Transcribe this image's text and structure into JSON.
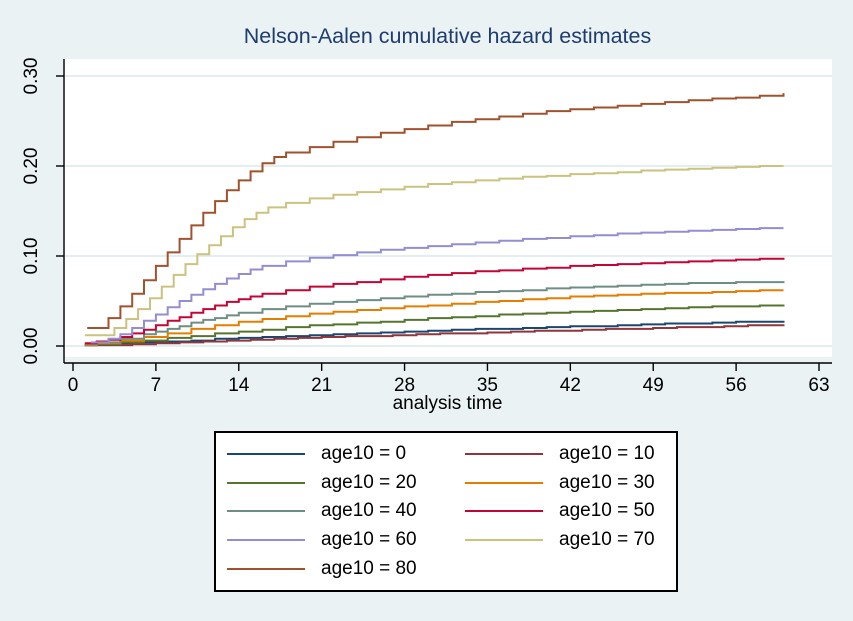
{
  "figure": {
    "background_color": "#eaf2f3",
    "plot_background_color": "#ffffff",
    "gridline_color": "#e3eef1",
    "axis_color": "#000000",
    "title_color": "#1e3c6e"
  },
  "chart_data": {
    "type": "line",
    "subtype": "step",
    "title": "Nelson-Aalen cumulative hazard estimates",
    "xlabel": "analysis time",
    "ylabel": "",
    "xlim": [
      0,
      63
    ],
    "ylim": [
      0,
      0.3
    ],
    "xticks": [
      0,
      7,
      14,
      21,
      28,
      35,
      42,
      49,
      56,
      63
    ],
    "yticks": [
      0.0,
      0.1,
      0.2,
      0.3
    ],
    "ytick_labels": [
      "0.00",
      "0.10",
      "0.20",
      "0.30"
    ],
    "grid": true,
    "legend_position": "below-center",
    "series": [
      {
        "name": "age10 = 0",
        "color": "#1a476f",
        "points": [
          [
            1,
            0.001
          ],
          [
            2,
            0.002
          ],
          [
            4,
            0.003
          ],
          [
            6,
            0.004
          ],
          [
            8,
            0.005
          ],
          [
            10,
            0.006
          ],
          [
            12,
            0.008
          ],
          [
            14,
            0.009
          ],
          [
            16,
            0.01
          ],
          [
            18,
            0.011
          ],
          [
            20,
            0.012
          ],
          [
            22,
            0.013
          ],
          [
            24,
            0.014
          ],
          [
            26,
            0.015
          ],
          [
            28,
            0.016
          ],
          [
            30,
            0.017
          ],
          [
            32,
            0.018
          ],
          [
            34,
            0.019
          ],
          [
            36,
            0.019
          ],
          [
            38,
            0.02
          ],
          [
            40,
            0.021
          ],
          [
            42,
            0.022
          ],
          [
            44,
            0.022
          ],
          [
            46,
            0.023
          ],
          [
            48,
            0.024
          ],
          [
            50,
            0.025
          ],
          [
            52,
            0.025
          ],
          [
            54,
            0.026
          ],
          [
            56,
            0.027
          ],
          [
            58,
            0.027
          ],
          [
            60,
            0.028
          ]
        ]
      },
      {
        "name": "age10 = 10",
        "color": "#90353b",
        "points": [
          [
            1,
            0.001
          ],
          [
            3,
            0.001
          ],
          [
            5,
            0.002
          ],
          [
            7,
            0.003
          ],
          [
            9,
            0.004
          ],
          [
            11,
            0.005
          ],
          [
            13,
            0.006
          ],
          [
            15,
            0.007
          ],
          [
            17,
            0.008
          ],
          [
            19,
            0.009
          ],
          [
            21,
            0.01
          ],
          [
            23,
            0.011
          ],
          [
            25,
            0.011
          ],
          [
            27,
            0.012
          ],
          [
            29,
            0.013
          ],
          [
            31,
            0.014
          ],
          [
            33,
            0.014
          ],
          [
            35,
            0.015
          ],
          [
            37,
            0.016
          ],
          [
            39,
            0.017
          ],
          [
            41,
            0.017
          ],
          [
            43,
            0.018
          ],
          [
            45,
            0.019
          ],
          [
            47,
            0.019
          ],
          [
            49,
            0.02
          ],
          [
            51,
            0.021
          ],
          [
            53,
            0.021
          ],
          [
            55,
            0.022
          ],
          [
            57,
            0.023
          ],
          [
            59,
            0.023
          ],
          [
            60,
            0.024
          ]
        ]
      },
      {
        "name": "age10 = 20",
        "color": "#55752f",
        "points": [
          [
            1,
            0.001
          ],
          [
            2,
            0.002
          ],
          [
            4,
            0.004
          ],
          [
            6,
            0.006
          ],
          [
            8,
            0.009
          ],
          [
            10,
            0.011
          ],
          [
            12,
            0.014
          ],
          [
            14,
            0.016
          ],
          [
            16,
            0.018
          ],
          [
            18,
            0.021
          ],
          [
            20,
            0.023
          ],
          [
            22,
            0.024
          ],
          [
            24,
            0.026
          ],
          [
            26,
            0.027
          ],
          [
            28,
            0.029
          ],
          [
            30,
            0.031
          ],
          [
            32,
            0.032
          ],
          [
            34,
            0.033
          ],
          [
            36,
            0.035
          ],
          [
            38,
            0.036
          ],
          [
            40,
            0.037
          ],
          [
            42,
            0.038
          ],
          [
            44,
            0.039
          ],
          [
            46,
            0.04
          ],
          [
            48,
            0.041
          ],
          [
            50,
            0.042
          ],
          [
            52,
            0.043
          ],
          [
            54,
            0.044
          ],
          [
            56,
            0.044
          ],
          [
            58,
            0.045
          ],
          [
            60,
            0.046
          ]
        ]
      },
      {
        "name": "age10 = 30",
        "color": "#e37e00",
        "points": [
          [
            1,
            0.001
          ],
          [
            2,
            0.003
          ],
          [
            4,
            0.006
          ],
          [
            6,
            0.01
          ],
          [
            8,
            0.014
          ],
          [
            10,
            0.019
          ],
          [
            12,
            0.023
          ],
          [
            14,
            0.027
          ],
          [
            16,
            0.03
          ],
          [
            18,
            0.033
          ],
          [
            20,
            0.036
          ],
          [
            22,
            0.038
          ],
          [
            24,
            0.04
          ],
          [
            26,
            0.042
          ],
          [
            28,
            0.044
          ],
          [
            30,
            0.045
          ],
          [
            32,
            0.047
          ],
          [
            34,
            0.049
          ],
          [
            36,
            0.05
          ],
          [
            38,
            0.052
          ],
          [
            40,
            0.053
          ],
          [
            42,
            0.055
          ],
          [
            44,
            0.056
          ],
          [
            46,
            0.057
          ],
          [
            48,
            0.058
          ],
          [
            50,
            0.059
          ],
          [
            52,
            0.059
          ],
          [
            54,
            0.06
          ],
          [
            56,
            0.061
          ],
          [
            58,
            0.062
          ],
          [
            60,
            0.062
          ]
        ]
      },
      {
        "name": "age10 = 40",
        "color": "#6e8e84",
        "points": [
          [
            1,
            0.002
          ],
          [
            2,
            0.004
          ],
          [
            4,
            0.008
          ],
          [
            6,
            0.013
          ],
          [
            7,
            0.016
          ],
          [
            8,
            0.019
          ],
          [
            9,
            0.022
          ],
          [
            10,
            0.026
          ],
          [
            11,
            0.029
          ],
          [
            12,
            0.031
          ],
          [
            13,
            0.034
          ],
          [
            14,
            0.037
          ],
          [
            16,
            0.041
          ],
          [
            18,
            0.044
          ],
          [
            20,
            0.047
          ],
          [
            22,
            0.049
          ],
          [
            24,
            0.051
          ],
          [
            26,
            0.053
          ],
          [
            28,
            0.055
          ],
          [
            30,
            0.057
          ],
          [
            32,
            0.058
          ],
          [
            34,
            0.06
          ],
          [
            36,
            0.061
          ],
          [
            38,
            0.062
          ],
          [
            40,
            0.064
          ],
          [
            42,
            0.065
          ],
          [
            44,
            0.066
          ],
          [
            46,
            0.067
          ],
          [
            48,
            0.068
          ],
          [
            50,
            0.069
          ],
          [
            52,
            0.07
          ],
          [
            54,
            0.07
          ],
          [
            56,
            0.071
          ],
          [
            58,
            0.071
          ],
          [
            60,
            0.072
          ]
        ]
      },
      {
        "name": "age10 = 50",
        "color": "#c10534",
        "points": [
          [
            1,
            0.003
          ],
          [
            2,
            0.005
          ],
          [
            3,
            0.007
          ],
          [
            4,
            0.01
          ],
          [
            5,
            0.014
          ],
          [
            6,
            0.018
          ],
          [
            7,
            0.023
          ],
          [
            8,
            0.028
          ],
          [
            9,
            0.032
          ],
          [
            10,
            0.037
          ],
          [
            11,
            0.041
          ],
          [
            12,
            0.045
          ],
          [
            13,
            0.049
          ],
          [
            14,
            0.052
          ],
          [
            15,
            0.055
          ],
          [
            16,
            0.058
          ],
          [
            18,
            0.062
          ],
          [
            20,
            0.066
          ],
          [
            22,
            0.069
          ],
          [
            24,
            0.071
          ],
          [
            26,
            0.074
          ],
          [
            28,
            0.077
          ],
          [
            30,
            0.079
          ],
          [
            32,
            0.081
          ],
          [
            34,
            0.083
          ],
          [
            36,
            0.084
          ],
          [
            38,
            0.086
          ],
          [
            40,
            0.087
          ],
          [
            42,
            0.089
          ],
          [
            44,
            0.09
          ],
          [
            46,
            0.091
          ],
          [
            48,
            0.092
          ],
          [
            50,
            0.093
          ],
          [
            52,
            0.094
          ],
          [
            54,
            0.095
          ],
          [
            56,
            0.096
          ],
          [
            58,
            0.097
          ],
          [
            60,
            0.098
          ]
        ]
      },
      {
        "name": "age10 = 60",
        "color": "#938dd2",
        "points": [
          [
            1.5,
            0.004
          ],
          [
            3,
            0.008
          ],
          [
            4,
            0.013
          ],
          [
            5,
            0.02
          ],
          [
            6,
            0.028
          ],
          [
            7,
            0.035
          ],
          [
            8,
            0.043
          ],
          [
            9,
            0.05
          ],
          [
            10,
            0.057
          ],
          [
            11,
            0.063
          ],
          [
            12,
            0.069
          ],
          [
            13,
            0.075
          ],
          [
            14,
            0.08
          ],
          [
            15,
            0.085
          ],
          [
            16,
            0.089
          ],
          [
            18,
            0.094
          ],
          [
            20,
            0.098
          ],
          [
            22,
            0.101
          ],
          [
            24,
            0.104
          ],
          [
            26,
            0.107
          ],
          [
            28,
            0.109
          ],
          [
            30,
            0.111
          ],
          [
            32,
            0.113
          ],
          [
            34,
            0.115
          ],
          [
            36,
            0.117
          ],
          [
            38,
            0.119
          ],
          [
            40,
            0.12
          ],
          [
            42,
            0.122
          ],
          [
            44,
            0.123
          ],
          [
            46,
            0.125
          ],
          [
            48,
            0.126
          ],
          [
            50,
            0.127
          ],
          [
            52,
            0.128
          ],
          [
            54,
            0.129
          ],
          [
            56,
            0.13
          ],
          [
            58,
            0.131
          ],
          [
            60,
            0.131
          ]
        ]
      },
      {
        "name": "age10 = 70",
        "color": "#cac27e",
        "points": [
          [
            1,
            0.012
          ],
          [
            3.5,
            0.02
          ],
          [
            4.5,
            0.03
          ],
          [
            5.5,
            0.041
          ],
          [
            6.5,
            0.053
          ],
          [
            7.5,
            0.066
          ],
          [
            8.5,
            0.079
          ],
          [
            9.5,
            0.091
          ],
          [
            10.5,
            0.102
          ],
          [
            11.5,
            0.112
          ],
          [
            12.5,
            0.122
          ],
          [
            13.5,
            0.132
          ],
          [
            14.5,
            0.141
          ],
          [
            15.5,
            0.148
          ],
          [
            16.5,
            0.154
          ],
          [
            18,
            0.159
          ],
          [
            20,
            0.164
          ],
          [
            22,
            0.168
          ],
          [
            24,
            0.171
          ],
          [
            26,
            0.174
          ],
          [
            28,
            0.177
          ],
          [
            30,
            0.18
          ],
          [
            32,
            0.182
          ],
          [
            34,
            0.184
          ],
          [
            36,
            0.186
          ],
          [
            38,
            0.188
          ],
          [
            40,
            0.189
          ],
          [
            42,
            0.191
          ],
          [
            44,
            0.192
          ],
          [
            46,
            0.193
          ],
          [
            48,
            0.195
          ],
          [
            50,
            0.196
          ],
          [
            52,
            0.197
          ],
          [
            54,
            0.198
          ],
          [
            56,
            0.199
          ],
          [
            58,
            0.2
          ],
          [
            60,
            0.2
          ]
        ]
      },
      {
        "name": "age10 = 80",
        "color": "#a0522d",
        "points": [
          [
            1.2,
            0.02
          ],
          [
            3,
            0.031
          ],
          [
            4,
            0.044
          ],
          [
            5,
            0.058
          ],
          [
            6,
            0.073
          ],
          [
            7,
            0.089
          ],
          [
            8,
            0.104
          ],
          [
            9,
            0.119
          ],
          [
            10,
            0.134
          ],
          [
            11,
            0.148
          ],
          [
            12,
            0.161
          ],
          [
            13,
            0.173
          ],
          [
            14,
            0.184
          ],
          [
            15,
            0.194
          ],
          [
            16,
            0.203
          ],
          [
            17,
            0.21
          ],
          [
            18,
            0.215
          ],
          [
            20,
            0.221
          ],
          [
            22,
            0.227
          ],
          [
            24,
            0.232
          ],
          [
            26,
            0.237
          ],
          [
            28,
            0.241
          ],
          [
            30,
            0.245
          ],
          [
            32,
            0.249
          ],
          [
            34,
            0.252
          ],
          [
            36,
            0.255
          ],
          [
            38,
            0.258
          ],
          [
            40,
            0.261
          ],
          [
            42,
            0.263
          ],
          [
            44,
            0.265
          ],
          [
            46,
            0.267
          ],
          [
            48,
            0.269
          ],
          [
            50,
            0.271
          ],
          [
            52,
            0.273
          ],
          [
            54,
            0.275
          ],
          [
            56,
            0.276
          ],
          [
            58,
            0.278
          ],
          [
            60,
            0.281
          ]
        ]
      }
    ]
  }
}
